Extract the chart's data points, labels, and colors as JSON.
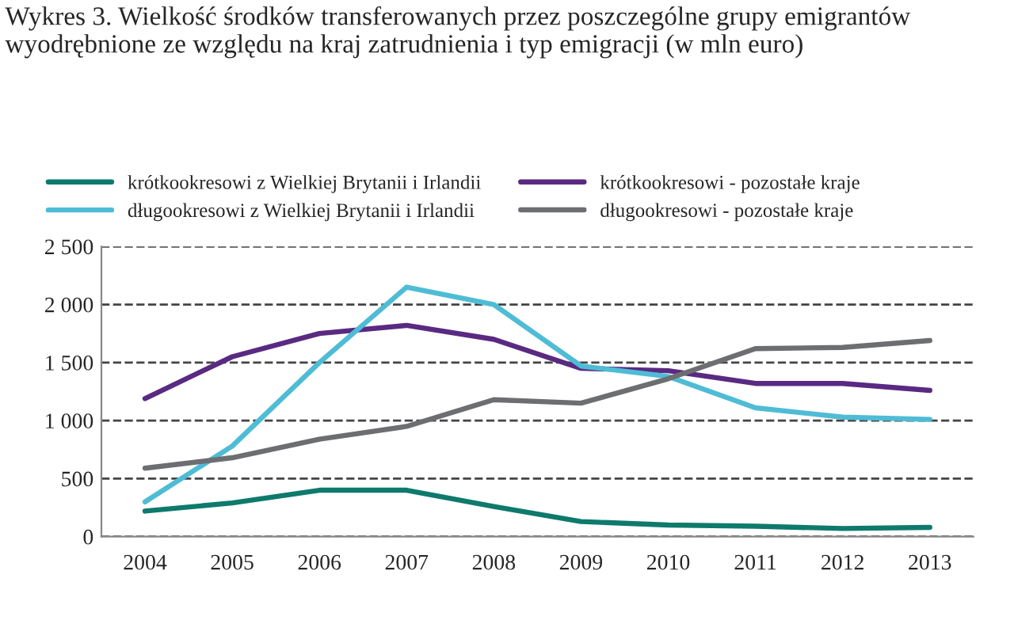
{
  "chart_data": {
    "type": "line",
    "title": "Wykres 3. Wielkość środków transferowanych przez poszczególne grupy emigrantów wyodrębnione ze względu na kraj zatrudnienia i typ emigracji (w mln euro)",
    "categories": [
      "2004",
      "2005",
      "2006",
      "2007",
      "2008",
      "2009",
      "2010",
      "2011",
      "2012",
      "2013"
    ],
    "series": [
      {
        "name": "krótkookresowi z Wielkiej Brytanii i Irlandii",
        "color": "#0e7a6c",
        "values": [
          220,
          290,
          400,
          400,
          260,
          130,
          100,
          90,
          70,
          80
        ]
      },
      {
        "name": "krótkookresowi - pozostałe kraje",
        "color": "#5a2a82",
        "values": [
          1190,
          1550,
          1750,
          1820,
          1700,
          1450,
          1430,
          1320,
          1320,
          1260
        ]
      },
      {
        "name": "długookresowi z Wielkiej Brytanii i Irlandii",
        "color": "#4fbcd6",
        "values": [
          300,
          780,
          1500,
          2150,
          2000,
          1470,
          1380,
          1110,
          1030,
          1010
        ]
      },
      {
        "name": "długookresowi - pozostałe kraje",
        "color": "#6d6e71",
        "values": [
          590,
          680,
          840,
          950,
          1180,
          1150,
          1360,
          1620,
          1630,
          1690
        ]
      }
    ],
    "ylim": [
      0,
      2500
    ],
    "yticks": [
      0,
      500,
      {
        "value": 1000,
        "label": "1 000"
      },
      {
        "value": 1500,
        "label": "1 500"
      },
      {
        "value": 2000,
        "label": "2 000"
      },
      {
        "value": 2500,
        "label": "2 500"
      }
    ],
    "grid": "y",
    "legend": "top",
    "marker": "none",
    "line_style": "solid"
  }
}
